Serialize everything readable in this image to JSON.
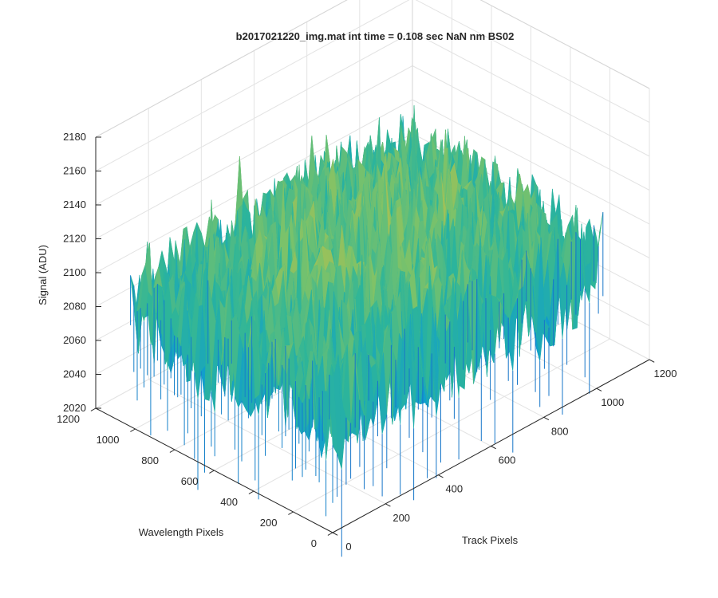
{
  "chart_data": {
    "type": "surface",
    "title": "b2017021220_img.mat int time = 0.108 sec  NaN nm BS02",
    "xlabel": "Track Pixels",
    "ylabel": "Wavelength Pixels",
    "zlabel": "Signal (ADU)",
    "x_ticks": [
      "0",
      "200",
      "400",
      "600",
      "800",
      "1000",
      "1200"
    ],
    "y_ticks": [
      "0",
      "200",
      "400",
      "600",
      "800",
      "1000",
      "1200"
    ],
    "z_ticks": [
      "2020",
      "2040",
      "2060",
      "2080",
      "2100",
      "2120",
      "2140",
      "2160",
      "2180"
    ],
    "xlim": [
      0,
      1200
    ],
    "ylim": [
      0,
      1200
    ],
    "zlim": [
      2020,
      2180
    ],
    "grid": true,
    "colormap": "parula",
    "surface_summary": {
      "track_pixel_range": [
        0,
        1024
      ],
      "wavelength_pixel_range": [
        0,
        1024
      ],
      "typical_signal_range": [
        2030,
        2165
      ],
      "mean_signal": 2095
    },
    "colors": {
      "low": "#1a5fc8",
      "mid_low": "#119fcc",
      "mid": "#2db59a",
      "mid_high": "#7bc26a",
      "high": "#d6bf3c"
    }
  }
}
